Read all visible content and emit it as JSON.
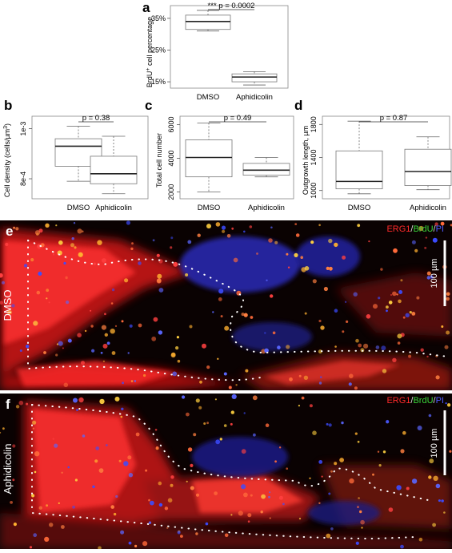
{
  "chart_data": [
    {
      "panel": "a",
      "type": "box",
      "ylabel_main": "BrdU",
      "ylabel_sup": "+",
      "ylabel_rest": " cell percentage",
      "categories": [
        "DMSO",
        "Aphidicolin"
      ],
      "ytick_labels": [
        "15%",
        "25%",
        "35%"
      ],
      "yticks": [
        15,
        25,
        35
      ],
      "ylim": [
        13,
        39
      ],
      "significance": "*** p = 0.0002",
      "boxes": [
        {
          "whisker_low": 31.0,
          "q1": 31.5,
          "median": 34.0,
          "q3": 36.0,
          "whisker_high": 37.5
        },
        {
          "whisker_low": 14.0,
          "q1": 15.0,
          "median": 16.5,
          "q3": 17.5,
          "whisker_high": 18.2
        }
      ]
    },
    {
      "panel": "b",
      "type": "box",
      "ylabel": "Cell density (cells/µm",
      "ylabel_sup": "3",
      "ylabel_end": ")",
      "categories": [
        "DMSO",
        "Aphidicolin"
      ],
      "ytick_labels": [
        "8e-4",
        "1e-3"
      ],
      "yticks": [
        0.0008,
        0.001
      ],
      "ylim": [
        0.00072,
        0.00105
      ],
      "significance": "p = 0.38",
      "boxes": [
        {
          "whisker_low": 0.00079,
          "q1": 0.00085,
          "median": 0.00093,
          "q3": 0.00096,
          "whisker_high": 0.00101
        },
        {
          "whisker_low": 0.00074,
          "q1": 0.00078,
          "median": 0.00082,
          "q3": 0.00089,
          "whisker_high": 0.00097
        }
      ]
    },
    {
      "panel": "c",
      "type": "box",
      "ylabel": "Total cell number",
      "categories": [
        "DMSO",
        "Aphidicolin"
      ],
      "ytick_labels": [
        "2000",
        "4000",
        "6000"
      ],
      "yticks": [
        2000,
        4000,
        6000
      ],
      "ylim": [
        1600,
        6500
      ],
      "significance": "p = 0.49",
      "boxes": [
        {
          "whisker_low": 2000,
          "q1": 2900,
          "median": 4050,
          "q3": 5100,
          "whisker_high": 6100
        },
        {
          "whisker_low": 2900,
          "q1": 3000,
          "median": 3300,
          "q3": 3700,
          "whisker_high": 4050
        }
      ]
    },
    {
      "panel": "d",
      "type": "box",
      "ylabel": "Outgrowth length, µm",
      "categories": [
        "DMSO",
        "Aphidicolin"
      ],
      "ytick_labels": [
        "1000",
        "1400",
        "1800"
      ],
      "yticks": [
        1000,
        1400,
        1800
      ],
      "ylim": [
        900,
        1900
      ],
      "significance": "p = 0.87",
      "boxes": [
        {
          "whisker_low": 960,
          "q1": 1020,
          "median": 1110,
          "q3": 1480,
          "whisker_high": 1840
        },
        {
          "whisker_low": 1010,
          "q1": 1060,
          "median": 1230,
          "q3": 1500,
          "whisker_high": 1650
        }
      ]
    }
  ],
  "micrographs": [
    {
      "panel": "e",
      "condition": "DMSO",
      "legend": [
        {
          "text": "ERG1",
          "color": "#ff2a2a"
        },
        {
          "text": "/",
          "color": "#dddddd"
        },
        {
          "text": "BrdU",
          "color": "#39d639"
        },
        {
          "text": "/",
          "color": "#dddddd"
        },
        {
          "text": "PI",
          "color": "#4f5bff"
        }
      ],
      "scalebar": "100 µm"
    },
    {
      "panel": "f",
      "condition": "Aphidicolin",
      "legend": [
        {
          "text": "ERG1",
          "color": "#ff2a2a"
        },
        {
          "text": "/",
          "color": "#dddddd"
        },
        {
          "text": "BrdU",
          "color": "#39d639"
        },
        {
          "text": "/",
          "color": "#dddddd"
        },
        {
          "text": "PI",
          "color": "#4f5bff"
        }
      ],
      "scalebar": "100 µm"
    }
  ]
}
